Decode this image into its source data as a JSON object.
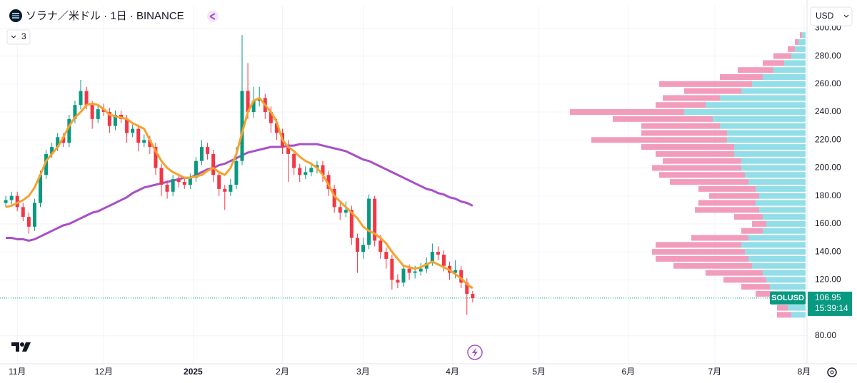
{
  "chart_data": {
    "type": "candlestick",
    "title": "ソラナ／米ドル · 1日 · BINANCE",
    "indicator_count": "3",
    "currency": "USD",
    "symbol_label": "SOLUSD",
    "last_price": 106.95,
    "countdown": "15:39:14",
    "up_color": "#089981",
    "down_color": "#f23645",
    "grid": true,
    "xlim": [
      -1,
      139
    ],
    "xticks": [
      {
        "value": 2,
        "label": "11月"
      },
      {
        "value": 17,
        "label": "12月"
      },
      {
        "value": 32.5,
        "label": "2025"
      },
      {
        "value": 48,
        "label": "2月"
      },
      {
        "value": 62,
        "label": "3月"
      },
      {
        "value": 77.5,
        "label": "4月"
      },
      {
        "value": 92.5,
        "label": "5月"
      },
      {
        "value": 108,
        "label": "6月"
      },
      {
        "value": 123,
        "label": "7月"
      },
      {
        "value": 138.5,
        "label": "8月"
      }
    ],
    "ylim": [
      60,
      316
    ],
    "yticks": [
      {
        "value": 80,
        "label": "80.00"
      },
      {
        "value": 120,
        "label": "120.00"
      },
      {
        "value": 140,
        "label": "140.00"
      },
      {
        "value": 160,
        "label": "160.00"
      },
      {
        "value": 180,
        "label": "180.00"
      },
      {
        "value": 200,
        "label": "200.00"
      },
      {
        "value": 220,
        "label": "220.00"
      },
      {
        "value": 240,
        "label": "240.00"
      },
      {
        "value": 260,
        "label": "260.00"
      },
      {
        "value": 280,
        "label": "280.00"
      },
      {
        "value": 300,
        "label": "300.00"
      }
    ],
    "ohlc": [
      [
        175,
        180,
        172,
        177
      ],
      [
        177,
        183,
        174,
        180
      ],
      [
        180,
        183,
        169,
        172
      ],
      [
        172,
        175,
        162,
        165
      ],
      [
        165,
        168,
        153,
        158
      ],
      [
        158,
        178,
        155,
        175
      ],
      [
        175,
        198,
        172,
        195
      ],
      [
        195,
        213,
        192,
        210
      ],
      [
        210,
        218,
        207,
        215
      ],
      [
        215,
        225,
        212,
        222
      ],
      [
        222,
        225,
        215,
        218
      ],
      [
        218,
        238,
        215,
        235
      ],
      [
        235,
        248,
        232,
        245
      ],
      [
        245,
        263,
        242,
        255
      ],
      [
        255,
        258,
        242,
        245
      ],
      [
        245,
        248,
        228,
        235
      ],
      [
        235,
        245,
        232,
        242
      ],
      [
        242,
        246,
        237,
        240
      ],
      [
        240,
        243,
        225,
        230
      ],
      [
        230,
        241,
        227,
        238
      ],
      [
        238,
        241,
        232,
        235
      ],
      [
        235,
        238,
        218,
        225
      ],
      [
        225,
        231,
        222,
        228
      ],
      [
        228,
        231,
        212,
        218
      ],
      [
        218,
        224,
        215,
        220
      ],
      [
        220,
        223,
        210,
        215
      ],
      [
        215,
        218,
        195,
        200
      ],
      [
        200,
        203,
        180,
        188
      ],
      [
        188,
        191,
        178,
        183
      ],
      [
        183,
        195,
        180,
        192
      ],
      [
        192,
        195,
        186,
        190
      ],
      [
        190,
        193,
        185,
        188
      ],
      [
        188,
        196,
        185,
        193
      ],
      [
        193,
        208,
        190,
        205
      ],
      [
        205,
        220,
        202,
        215
      ],
      [
        215,
        218,
        206,
        210
      ],
      [
        210,
        213,
        190,
        195
      ],
      [
        195,
        198,
        180,
        185
      ],
      [
        185,
        188,
        170,
        183
      ],
      [
        183,
        192,
        180,
        188
      ],
      [
        188,
        215,
        185,
        205
      ],
      [
        205,
        295,
        202,
        255
      ],
      [
        255,
        275,
        235,
        240
      ],
      [
        240,
        258,
        236,
        248
      ],
      [
        248,
        258,
        244,
        250
      ],
      [
        250,
        253,
        235,
        240
      ],
      [
        240,
        244,
        225,
        232
      ],
      [
        232,
        235,
        220,
        225
      ],
      [
        225,
        228,
        210,
        215
      ],
      [
        215,
        220,
        190,
        210
      ],
      [
        210,
        213,
        195,
        200
      ],
      [
        200,
        203,
        190,
        195
      ],
      [
        195,
        201,
        192,
        197
      ],
      [
        197,
        204,
        194,
        200
      ],
      [
        200,
        205,
        196,
        202
      ],
      [
        202,
        205,
        190,
        195
      ],
      [
        195,
        198,
        180,
        185
      ],
      [
        185,
        188,
        168,
        172
      ],
      [
        172,
        175,
        163,
        168
      ],
      [
        168,
        176,
        165,
        170
      ],
      [
        170,
        173,
        145,
        150
      ],
      [
        150,
        153,
        125,
        140
      ],
      [
        140,
        150,
        135,
        145
      ],
      [
        145,
        181,
        142,
        178
      ],
      [
        178,
        180,
        144,
        148
      ],
      [
        148,
        152,
        135,
        140
      ],
      [
        140,
        143,
        128,
        135
      ],
      [
        135,
        138,
        113,
        120
      ],
      [
        120,
        124,
        114,
        118
      ],
      [
        118,
        131,
        115,
        128
      ],
      [
        128,
        131,
        120,
        125
      ],
      [
        125,
        130,
        121,
        126
      ],
      [
        126,
        132,
        123,
        128
      ],
      [
        128,
        136,
        125,
        132
      ],
      [
        132,
        146,
        130,
        140
      ],
      [
        140,
        144,
        134,
        138
      ],
      [
        138,
        141,
        126,
        130
      ],
      [
        130,
        133,
        120,
        125
      ],
      [
        125,
        134,
        121,
        127
      ],
      [
        127,
        130,
        114,
        118
      ],
      [
        118,
        121,
        95,
        110
      ],
      [
        110,
        112,
        104,
        106.95
      ]
    ],
    "moving_averages": [
      {
        "color": "#f7a12e",
        "values": [
          172,
          173,
          175,
          177,
          180,
          186,
          195,
          205,
          210,
          215,
          222,
          230,
          236,
          240,
          245,
          246,
          245,
          242,
          238,
          237,
          236,
          235,
          232,
          230,
          228,
          220,
          212,
          205,
          200,
          197,
          195,
          193,
          193,
          194,
          195,
          198,
          200,
          197,
          195,
          200,
          210,
          225,
          240,
          248,
          250,
          245,
          240,
          233,
          220,
          215,
          212,
          208,
          205,
          203,
          200,
          195,
          188,
          180,
          176,
          172,
          168,
          164,
          158,
          155,
          153,
          150,
          146,
          140,
          135,
          130,
          129,
          128,
          129,
          131,
          133,
          131,
          129,
          127,
          124,
          121,
          117,
          114
        ]
      },
      {
        "color": "#a84fc6",
        "values": [
          150,
          150,
          149,
          149,
          148,
          149,
          151,
          153,
          155,
          157,
          159,
          160,
          162,
          164,
          166,
          168,
          169,
          171,
          173,
          175,
          177,
          179,
          182,
          184,
          186,
          187,
          188,
          189,
          190,
          191,
          192,
          193,
          193,
          195,
          197,
          199,
          200,
          202,
          203,
          205,
          207,
          209,
          211,
          212,
          213,
          214,
          215,
          215,
          215,
          216,
          216,
          217,
          217,
          217,
          217,
          216,
          215,
          214,
          213,
          212,
          210,
          208,
          206,
          205,
          203,
          201,
          199,
          197,
          195,
          193,
          191,
          189,
          187,
          185,
          184,
          182,
          181,
          179,
          178,
          176,
          175,
          173
        ]
      }
    ],
    "volume_profile": {
      "up_color": "#7fd8e4",
      "down_color": "#f08bb0",
      "prices": [
        95,
        100,
        105,
        110,
        115,
        120,
        125,
        130,
        135,
        140,
        145,
        150,
        155,
        160,
        165,
        170,
        175,
        180,
        185,
        190,
        195,
        200,
        205,
        210,
        215,
        220,
        225,
        230,
        235,
        240,
        245,
        250,
        255,
        260,
        265,
        270,
        275,
        280,
        285,
        290,
        295
      ],
      "up": [
        20,
        25,
        30,
        45,
        50,
        55,
        60,
        75,
        80,
        85,
        90,
        80,
        60,
        55,
        60,
        65,
        70,
        65,
        70,
        80,
        85,
        90,
        90,
        100,
        100,
        110,
        110,
        120,
        130,
        170,
        140,
        120,
        90,
        75,
        60,
        45,
        30,
        20,
        15,
        10,
        5
      ],
      "down": [
        20,
        15,
        20,
        25,
        40,
        60,
        80,
        110,
        130,
        130,
        120,
        80,
        30,
        20,
        40,
        90,
        80,
        70,
        80,
        110,
        120,
        125,
        110,
        110,
        130,
        190,
        120,
        110,
        140,
        160,
        70,
        80,
        80,
        130,
        60,
        50,
        30,
        25,
        10,
        5,
        3
      ]
    }
  }
}
